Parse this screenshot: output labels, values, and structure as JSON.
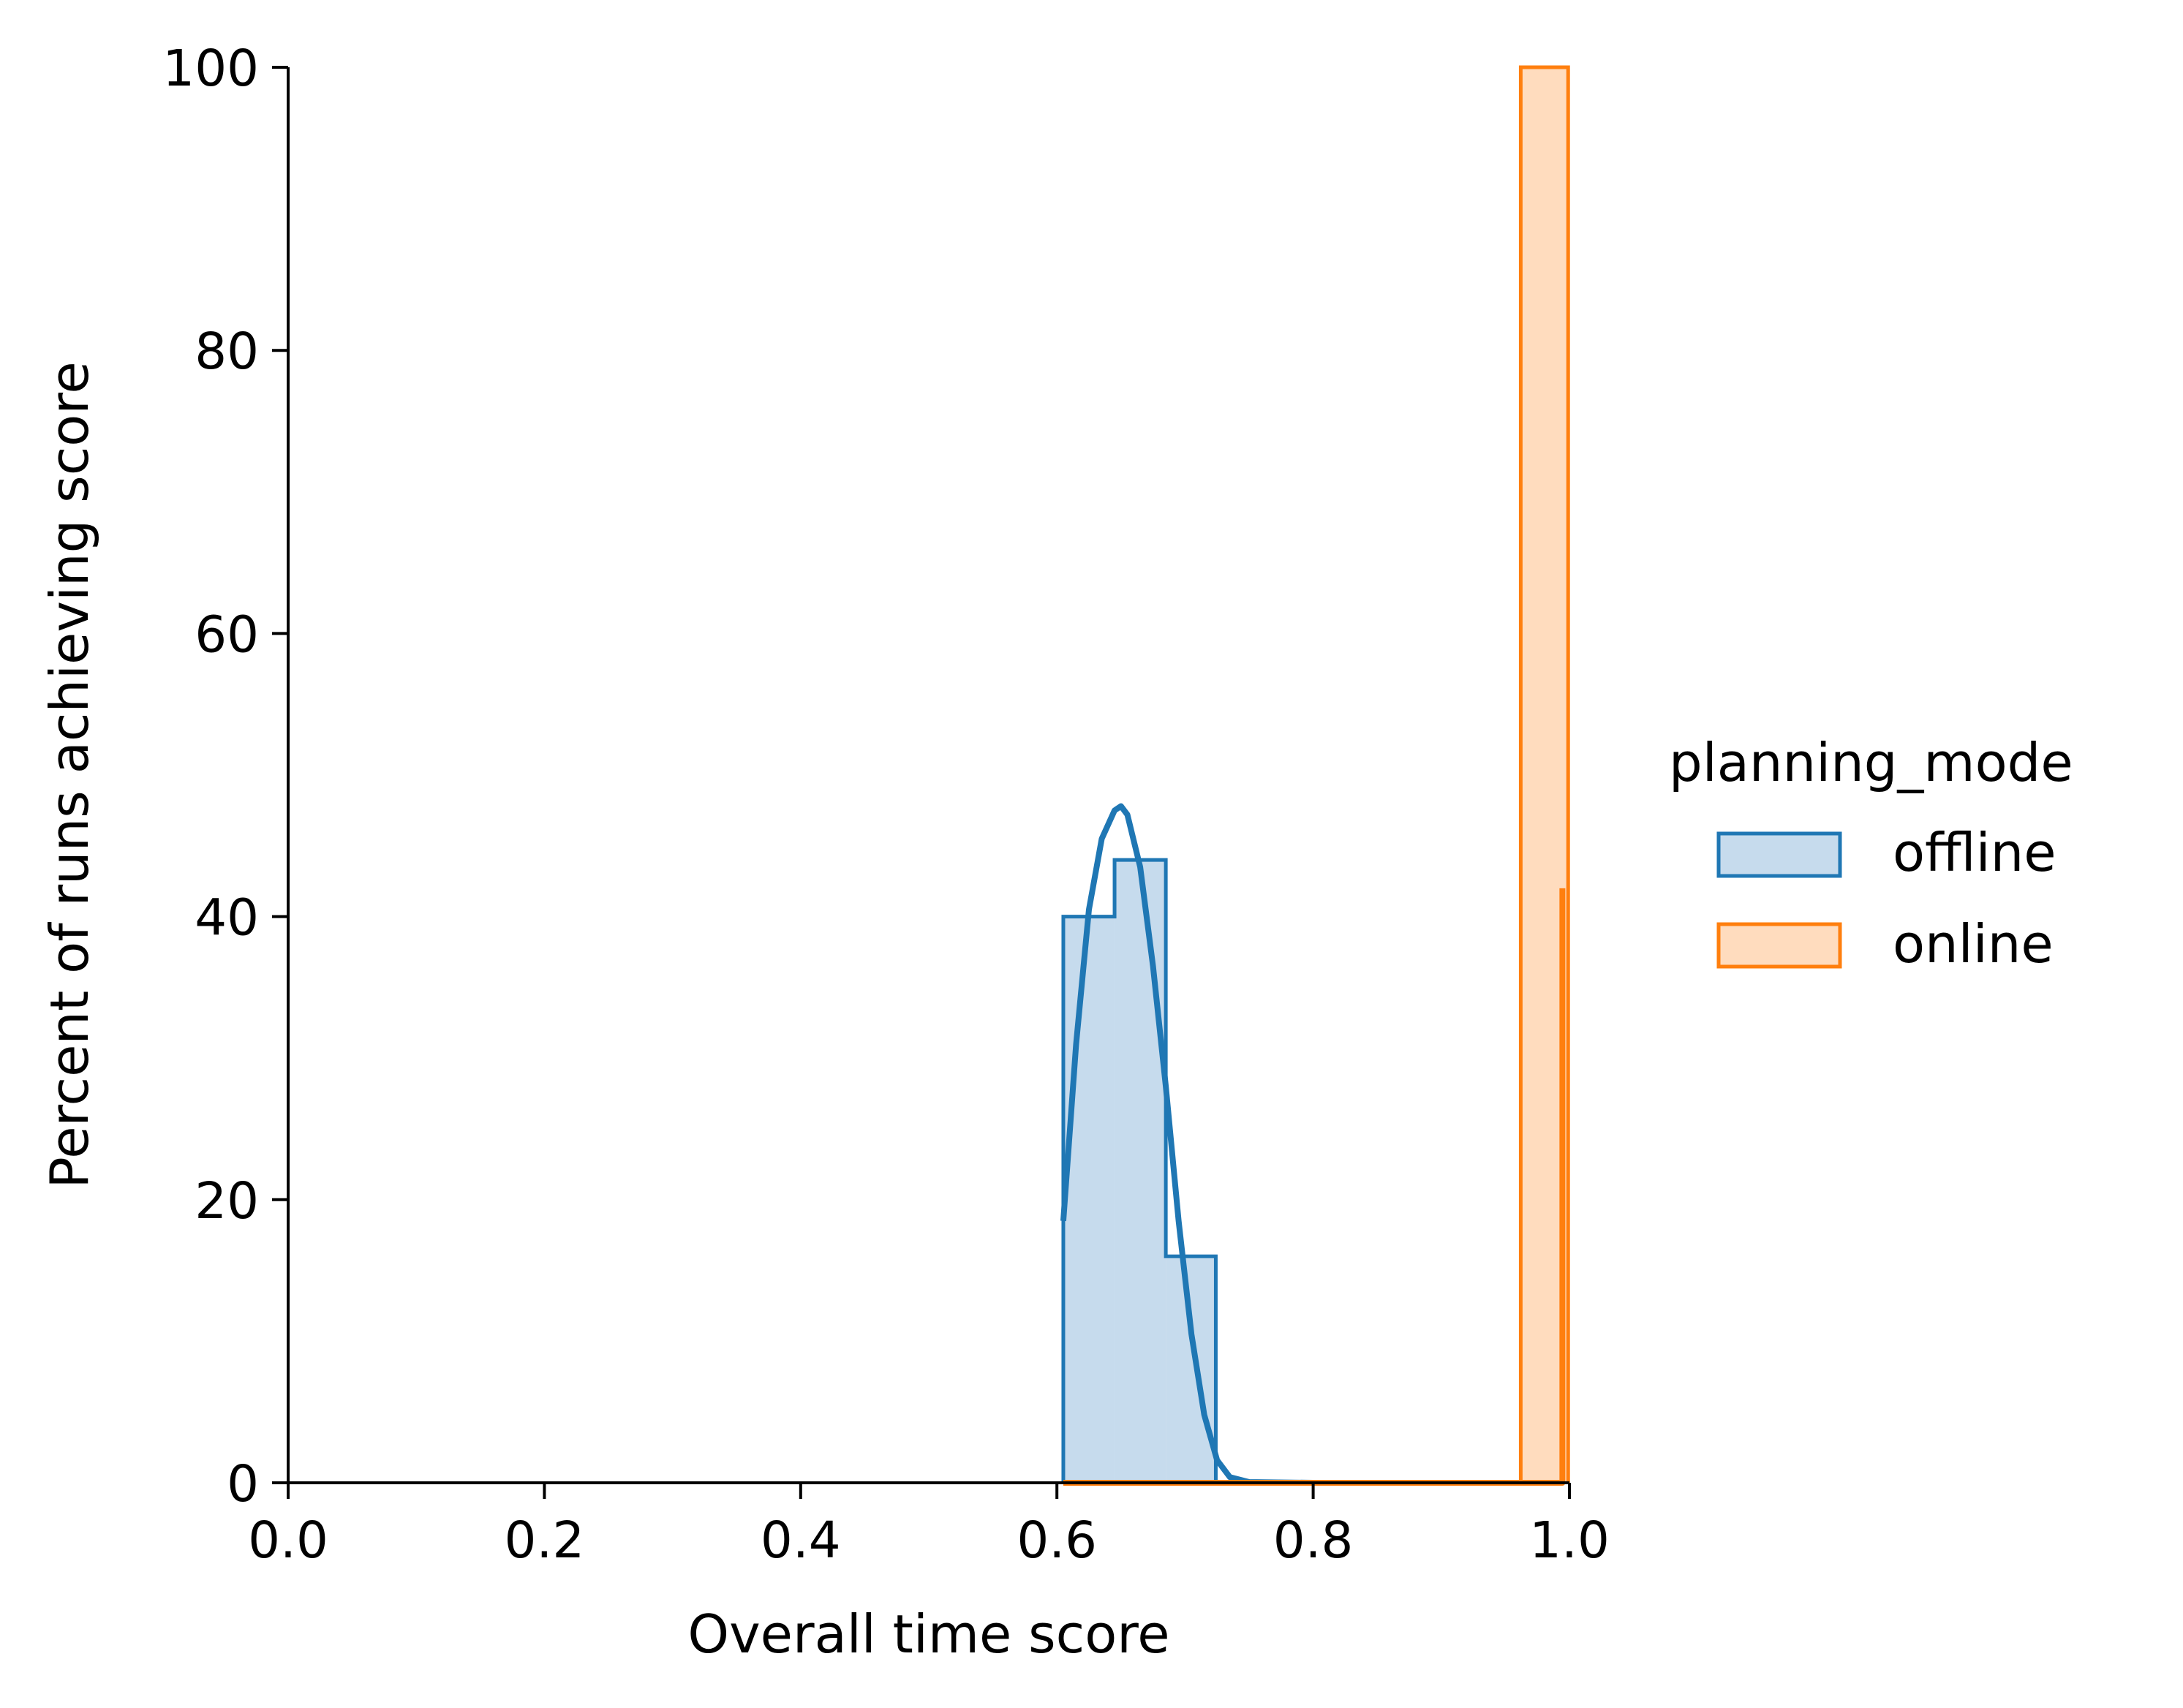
{
  "chart_data": {
    "type": "histogram",
    "xlabel": "Overall time score",
    "ylabel": "Percent of runs achieving score",
    "xlim": [
      0.0,
      1.0
    ],
    "ylim": [
      0,
      100
    ],
    "x_ticks": [
      "0.0",
      "0.2",
      "0.4",
      "0.6",
      "0.8",
      "1.0"
    ],
    "y_ticks": [
      "0",
      "20",
      "40",
      "60",
      "80",
      "100"
    ],
    "grid": false,
    "legend": {
      "title": "planning_mode",
      "placement": "right outside",
      "entries": [
        "offline",
        "online"
      ]
    },
    "series": [
      {
        "name": "offline",
        "color": "#1f77b4",
        "fill": "#c6dbed",
        "bins": [
          {
            "x0": 0.605,
            "x1": 0.645,
            "value": 40
          },
          {
            "x0": 0.645,
            "x1": 0.685,
            "value": 44
          },
          {
            "x0": 0.685,
            "x1": 0.724,
            "value": 16
          }
        ],
        "kde": [
          {
            "x": 0.605,
            "y": 18.5
          },
          {
            "x": 0.615,
            "y": 31.0
          },
          {
            "x": 0.625,
            "y": 40.5
          },
          {
            "x": 0.635,
            "y": 45.5
          },
          {
            "x": 0.645,
            "y": 47.5
          },
          {
            "x": 0.65,
            "y": 47.8
          },
          {
            "x": 0.655,
            "y": 47.2
          },
          {
            "x": 0.665,
            "y": 43.5
          },
          {
            "x": 0.675,
            "y": 36.5
          },
          {
            "x": 0.685,
            "y": 28.0
          },
          {
            "x": 0.695,
            "y": 18.5
          },
          {
            "x": 0.705,
            "y": 10.5
          },
          {
            "x": 0.715,
            "y": 4.8
          },
          {
            "x": 0.725,
            "y": 1.6
          },
          {
            "x": 0.735,
            "y": 0.4
          },
          {
            "x": 0.75,
            "y": 0.05
          },
          {
            "x": 0.8,
            "y": 0.0
          },
          {
            "x": 0.9,
            "y": 0.0
          },
          {
            "x": 0.99,
            "y": 0.0
          }
        ]
      },
      {
        "name": "online",
        "color": "#ff7f0e",
        "fill": "#ffdcbe",
        "bins": [
          {
            "x0": 0.962,
            "x1": 0.999,
            "value": 100
          }
        ],
        "kde": [
          {
            "x": 0.605,
            "y": 0.0
          },
          {
            "x": 0.72,
            "y": 0.0
          },
          {
            "x": 0.9945,
            "y": 0.0
          },
          {
            "x": 0.9945,
            "y": 42.0
          }
        ]
      }
    ]
  }
}
